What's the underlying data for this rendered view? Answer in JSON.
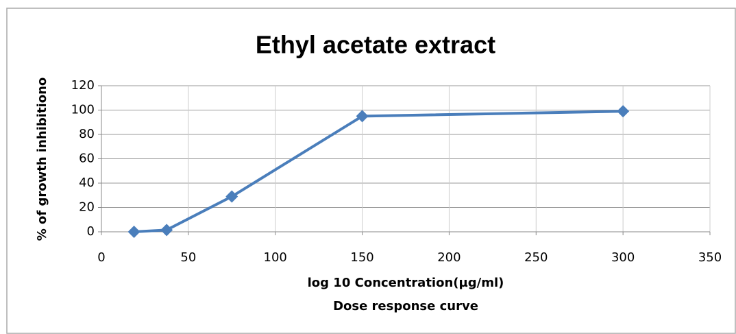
{
  "chart_data": {
    "type": "line",
    "title": "Ethyl acetate extract",
    "x_label": "log 10 Concentration(µg/ml)",
    "subtitle": "Dose response curve",
    "y_label": "% of growth inhibitiono",
    "x": [
      18.75,
      37.5,
      75,
      150,
      300
    ],
    "series": [
      {
        "name": "Ethyl acetate extract",
        "color": "#4a7ebb",
        "values": [
          0,
          1.5,
          29,
          95,
          99
        ]
      }
    ],
    "xlim": [
      0,
      350
    ],
    "xticks": [
      0,
      50,
      100,
      150,
      200,
      250,
      300,
      350
    ],
    "ylim": [
      0,
      120
    ],
    "yticks": [
      0,
      20,
      40,
      60,
      80,
      100,
      120
    ],
    "grid": true,
    "legend": false
  }
}
